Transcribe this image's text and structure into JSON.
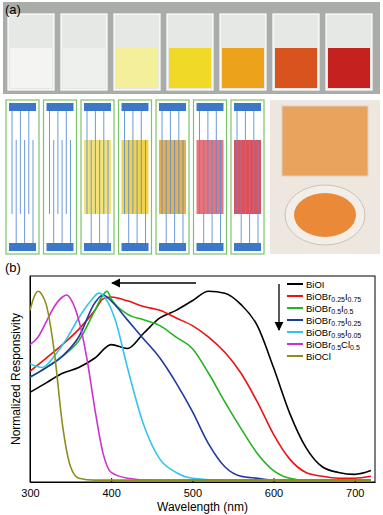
{
  "panel_labels": [
    "(a)",
    "(b)"
  ],
  "chart_data": {
    "type": "line",
    "x_label": "Wavelength (nm)",
    "y_label": "Normalized Responsivity",
    "xlim": [
      300,
      725
    ],
    "xticks": [
      300,
      400,
      500,
      600,
      700
    ],
    "ylim": [
      0,
      1.08
    ],
    "tick_labels": "x",
    "grid": false,
    "legend": "upper right",
    "series": [
      {
        "name": "BiOI",
        "color": "#000000",
        "x": [
          300,
          320,
          340,
          360,
          380,
          400,
          420,
          440,
          460,
          480,
          500,
          520,
          540,
          560,
          580,
          600,
          620,
          640,
          660,
          680,
          700,
          720
        ],
        "values": [
          0.47,
          0.52,
          0.57,
          0.6,
          0.65,
          0.72,
          0.7,
          0.78,
          0.86,
          0.9,
          0.95,
          1.0,
          0.99,
          0.93,
          0.82,
          0.6,
          0.36,
          0.18,
          0.08,
          0.05,
          0.04,
          0.06
        ]
      },
      {
        "name": "BiOBr0.25I0.75",
        "color": "#ee1111",
        "x": [
          300,
          320,
          340,
          360,
          380,
          390,
          400,
          420,
          440,
          460,
          480,
          500,
          520,
          540,
          560,
          580,
          600,
          620,
          640,
          660,
          680,
          700,
          720
        ],
        "values": [
          0.58,
          0.65,
          0.72,
          0.8,
          0.9,
          0.96,
          0.97,
          0.95,
          0.92,
          0.9,
          0.86,
          0.82,
          0.76,
          0.68,
          0.57,
          0.42,
          0.25,
          0.12,
          0.05,
          0.03,
          0.02,
          0.02,
          0.03
        ]
      },
      {
        "name": "BiOBr0.5I0.5",
        "color": "#22b422",
        "x": [
          300,
          320,
          340,
          360,
          380,
          390,
          395,
          400,
          420,
          440,
          460,
          480,
          500,
          520,
          540,
          560,
          580,
          600,
          620,
          640,
          680,
          720
        ],
        "values": [
          0.55,
          0.6,
          0.66,
          0.74,
          0.9,
          0.98,
          1.0,
          0.96,
          0.88,
          0.85,
          0.82,
          0.76,
          0.7,
          0.57,
          0.42,
          0.28,
          0.15,
          0.06,
          0.02,
          0.01,
          0.01,
          0.01
        ]
      },
      {
        "name": "BiOBr0.75I0.25",
        "color": "#1f3a9c",
        "x": [
          300,
          320,
          340,
          360,
          380,
          390,
          400,
          420,
          440,
          460,
          480,
          500,
          520,
          540,
          560,
          580,
          600,
          640,
          720
        ],
        "values": [
          0.55,
          0.6,
          0.66,
          0.76,
          0.94,
          0.98,
          0.95,
          0.85,
          0.75,
          0.65,
          0.52,
          0.37,
          0.2,
          0.08,
          0.03,
          0.02,
          0.01,
          0.01,
          0.01
        ]
      },
      {
        "name": "BiOBr0.95I0.05",
        "color": "#33c4ee",
        "x": [
          300,
          315,
          330,
          345,
          360,
          375,
          385,
          395,
          405,
          420,
          440,
          460,
          480,
          500,
          540,
          600,
          720
        ],
        "values": [
          0.62,
          0.6,
          0.66,
          0.75,
          0.86,
          0.95,
          0.99,
          0.95,
          0.85,
          0.6,
          0.3,
          0.12,
          0.05,
          0.02,
          0.01,
          0.01,
          0.01
        ]
      },
      {
        "name": "BiOBr0.5Cl0.5",
        "color": "#cc33cc",
        "x": [
          300,
          310,
          320,
          330,
          340,
          345,
          350,
          360,
          370,
          380,
          390,
          400,
          420,
          450,
          500,
          600,
          720
        ],
        "values": [
          0.72,
          0.76,
          0.84,
          0.92,
          0.97,
          0.98,
          0.96,
          0.85,
          0.65,
          0.38,
          0.15,
          0.05,
          0.02,
          0.01,
          0.01,
          0.01,
          0.01
        ]
      },
      {
        "name": "BiOCl",
        "color": "#8e8e1c",
        "x": [
          300,
          305,
          310,
          315,
          320,
          330,
          340,
          350,
          360,
          380,
          420,
          500,
          600,
          720
        ],
        "values": [
          0.9,
          0.97,
          1.0,
          0.98,
          0.93,
          0.68,
          0.3,
          0.08,
          0.02,
          0.01,
          0.01,
          0.01,
          0.01,
          0.01
        ]
      }
    ]
  }
}
